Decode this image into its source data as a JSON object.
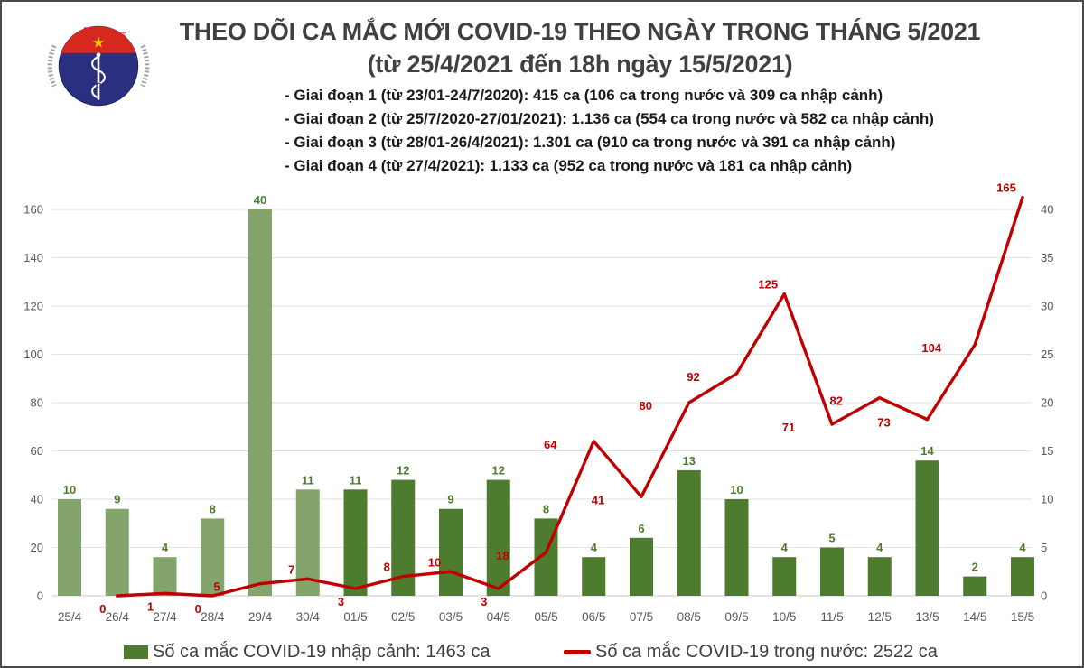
{
  "header": {
    "title_line1": "THEO DÕI CA MẮC MỚI COVID-19 THEO NGÀY TRONG THÁNG 5/2021",
    "title_line2": "(từ 25/4/2021 đến 18h ngày 15/5/2021)",
    "bullets": [
      "- Giai đoạn 1 (từ 23/01-24/7/2020): 415 ca (106 ca trong nước và 309 ca nhập cảnh)",
      "- Giai đoạn 2 (từ 25/7/2020-27/01/2021): 1.136 ca (554 ca trong nước và 582 ca nhập cảnh)",
      "- Giai đoạn 3 (từ 28/01-26/4/2021): 1.301 ca (910 ca trong nước và 391 ca nhập cảnh)",
      "- Giai đoạn 4 (từ 27/4/2021): 1.133 ca (952 ca trong nước và 181 ca nhập cảnh)"
    ]
  },
  "logo": {
    "top_text": "BỘ Y TẾ",
    "bottom_text": "MINISTRY OF HEALTH"
  },
  "chart_data": {
    "type": "bar+line",
    "title": "THEO DÕI CA MẮC MỚI COVID-19 THEO NGÀY TRONG THÁNG 5/2021 (từ 25/4/2021 đến 18h ngày 15/5/2021)",
    "categories": [
      "25/4",
      "26/4",
      "27/4",
      "28/4",
      "29/4",
      "30/4",
      "01/5",
      "02/5",
      "03/5",
      "04/5",
      "05/5",
      "06/5",
      "07/5",
      "08/5",
      "09/5",
      "10/5",
      "11/5",
      "12/5",
      "13/5",
      "14/5",
      "15/5"
    ],
    "series": [
      {
        "name": "Số ca mắc COVID-19 nhập cảnh",
        "type": "bar",
        "axis": "right",
        "values": [
          10,
          9,
          4,
          8,
          40,
          11,
          11,
          12,
          9,
          12,
          8,
          4,
          6,
          13,
          10,
          4,
          5,
          4,
          14,
          2,
          4
        ],
        "bar_colors_by_index": [
          "#83A56C",
          "#83A56C",
          "#83A56C",
          "#83A56C",
          "#83A56C",
          "#83A56C",
          "#4D7C2E",
          "#4D7C2E",
          "#4D7C2E",
          "#4D7C2E",
          "#4D7C2E",
          "#4D7C2E",
          "#4D7C2E",
          "#4D7C2E",
          "#4D7C2E",
          "#4D7C2E",
          "#4D7C2E",
          "#4D7C2E",
          "#4D7C2E",
          "#4D7C2E",
          "#4D7C2E"
        ],
        "label_color": "#4E7B2F"
      },
      {
        "name": "Số ca mắc COVID-19 trong nước",
        "type": "line",
        "axis": "left",
        "color": "#C00000",
        "values": [
          null,
          0,
          1,
          0,
          5,
          7,
          3,
          8,
          10,
          3,
          18,
          64,
          41,
          80,
          92,
          125,
          71,
          82,
          73,
          104,
          165
        ],
        "label_pos": [
          null,
          "below",
          "below",
          "below",
          "left",
          "above",
          "below",
          "above",
          "above",
          "below",
          "left",
          "left",
          "left",
          "left",
          "left",
          "above",
          "left",
          "left",
          "left",
          "left",
          "above"
        ]
      }
    ],
    "left_axis": {
      "min": 0,
      "max": 160,
      "step": 20,
      "ticks": [
        "0",
        "20",
        "40",
        "60",
        "80",
        "100",
        "120",
        "140",
        "160"
      ]
    },
    "right_axis": {
      "min": 0,
      "max": 40,
      "step": 5,
      "ticks": [
        "0",
        "5",
        "10",
        "15",
        "20",
        "25",
        "30",
        "35",
        "40"
      ]
    },
    "grid": true,
    "legend_position": "bottom"
  },
  "legend": [
    {
      "label": "Số ca mắc COVID-19 nhập cảnh: 1463 ca",
      "swatch": "square",
      "color": "#4D7C2E"
    },
    {
      "label": "Số ca mắc COVID-19 trong nước: 2522 ca",
      "swatch": "line",
      "color": "#C00000"
    }
  ],
  "colors": {
    "title": "#404040",
    "bullet_text": "#1a1a1a",
    "axis_text": "#595959",
    "grid": "#e2e2e2",
    "baseline": "#c9c9c9",
    "bar_april": "#83A56C",
    "bar_may": "#4D7C2E",
    "bar_label": "#4E7B2F",
    "line": "#C00000",
    "legend_text": "#3F3F3F",
    "logo_red": "#D6281E",
    "logo_navy": "#2B2F80",
    "logo_star": "#FFCB05",
    "logo_ring": "#A6A6A6"
  }
}
